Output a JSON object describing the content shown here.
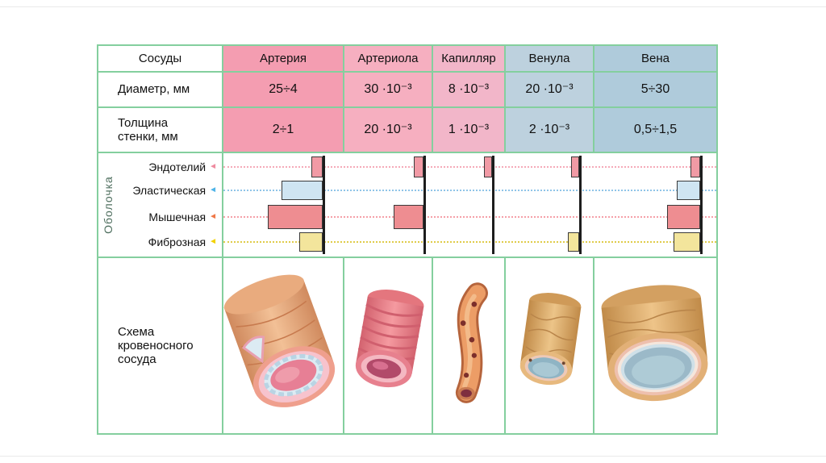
{
  "slide": {
    "border_color": "#84cf9e",
    "text_color": "#111111"
  },
  "table": {
    "corner_label": "Сосуды",
    "columns": [
      "Артерия",
      "Артериола",
      "Капилляр",
      "Венула",
      "Вена"
    ],
    "column_colors": [
      "#f49db1",
      "#f6afc0",
      "#f2b6c9",
      "#bdd1de",
      "#afcbdb"
    ],
    "rows": {
      "diameter": {
        "label": "Диаметр, мм",
        "values": [
          "25÷4",
          "30 ·10⁻³",
          "8 ·10⁻³",
          "20 ·10⁻³",
          "5÷30"
        ]
      },
      "wall_thickness": {
        "label": "Толщина\nстенки, мм",
        "values": [
          "2÷1",
          "20 ·10⁻³",
          "1 ·10⁻³",
          "2 ·10⁻³",
          "0,5÷1,5"
        ]
      }
    }
  },
  "membranes": {
    "side_label": "Оболочка",
    "layers": [
      {
        "label": "Эндотелий",
        "bar_color": "#f19aa5",
        "dot_color": "#f5aab8",
        "arrow_color": "#ef8ca0"
      },
      {
        "label": "Эластическая",
        "bar_color": "#cfe5f2",
        "dot_color": "#8fc4e8",
        "arrow_color": "#4fb4e8"
      },
      {
        "label": "Мышечная",
        "bar_color": "#ee8d91",
        "dot_color": "#f5a0a8",
        "arrow_color": "#f07848"
      },
      {
        "label": "Фиброзная",
        "bar_color": "#f3e59c",
        "dot_color": "#e0cc4a",
        "arrow_color": "#f2d200"
      }
    ],
    "vessels": [
      {
        "name": "Артерия",
        "layers_relative_thickness": [
          0.2,
          0.75,
          1.0,
          0.42
        ]
      },
      {
        "name": "Артериола",
        "layers_relative_thickness": [
          0.17,
          0,
          0.55,
          0
        ]
      },
      {
        "name": "Капилляр",
        "layers_relative_thickness": [
          0.14,
          0,
          0,
          0
        ]
      },
      {
        "name": "Венула",
        "layers_relative_thickness": [
          0.14,
          0,
          0,
          0.2
        ]
      },
      {
        "name": "Вена",
        "layers_relative_thickness": [
          0.17,
          0.42,
          0.6,
          0.48
        ]
      }
    ]
  },
  "scheme": {
    "label": "Схема\nкровеносного\nсосуда"
  }
}
